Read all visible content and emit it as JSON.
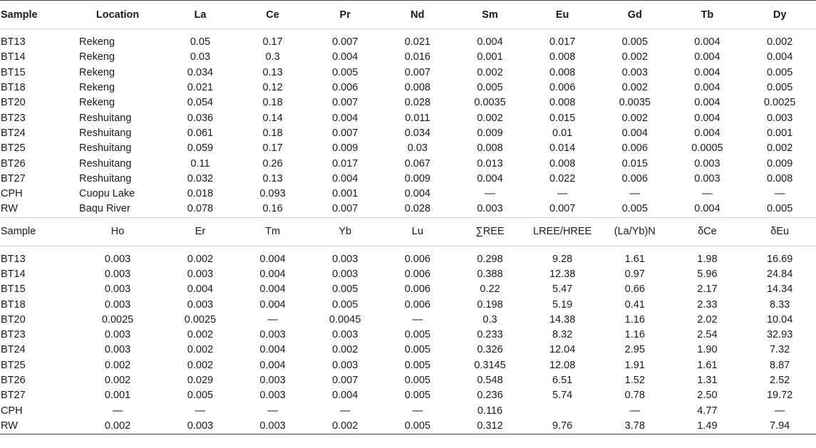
{
  "table1": {
    "headers": [
      "Sample",
      "Location",
      "La",
      "Ce",
      "Pr",
      "Nd",
      "Sm",
      "Eu",
      "Gd",
      "Tb",
      "Dy"
    ],
    "rows": [
      [
        "BT13",
        "Rekeng",
        "0.05",
        "0.17",
        "0.007",
        "0.021",
        "0.004",
        "0.017",
        "0.005",
        "0.004",
        "0.002"
      ],
      [
        "BT14",
        "Rekeng",
        "0.03",
        "0.3",
        "0.004",
        "0.016",
        "0.001",
        "0.008",
        "0.002",
        "0.004",
        "0.004"
      ],
      [
        "BT15",
        "Rekeng",
        "0.034",
        "0.13",
        "0.005",
        "0.007",
        "0.002",
        "0.008",
        "0.003",
        "0.004",
        "0.005"
      ],
      [
        "BT18",
        "Rekeng",
        "0.021",
        "0.12",
        "0.006",
        "0.008",
        "0.005",
        "0.006",
        "0.002",
        "0.004",
        "0.005"
      ],
      [
        "BT20",
        "Rekeng",
        "0.054",
        "0.18",
        "0.007",
        "0.028",
        "0.0035",
        "0.008",
        "0.0035",
        "0.004",
        "0.0025"
      ],
      [
        "BT23",
        "Reshuitang",
        "0.036",
        "0.14",
        "0.004",
        "0.011",
        "0.002",
        "0.015",
        "0.002",
        "0.004",
        "0.003"
      ],
      [
        "BT24",
        "Reshuitang",
        "0.061",
        "0.18",
        "0.007",
        "0.034",
        "0.009",
        "0.01",
        "0.004",
        "0.004",
        "0.001"
      ],
      [
        "BT25",
        "Reshuitang",
        "0.059",
        "0.17",
        "0.009",
        "0.03",
        "0.008",
        "0.014",
        "0.006",
        "0.0005",
        "0.002"
      ],
      [
        "BT26",
        "Reshuitang",
        "0.11",
        "0.26",
        "0.017",
        "0.067",
        "0.013",
        "0.008",
        "0.015",
        "0.003",
        "0.009"
      ],
      [
        "BT27",
        "Reshuitang",
        "0.032",
        "0.13",
        "0.004",
        "0.009",
        "0.004",
        "0.022",
        "0.006",
        "0.003",
        "0.008"
      ],
      [
        "CPH",
        "Cuopu Lake",
        "0.018",
        "0.093",
        "0.001",
        "0.004",
        "—",
        "—",
        "—",
        "—",
        "—"
      ],
      [
        "RW",
        "Baqu River",
        "0.078",
        "0.16",
        "0.007",
        "0.028",
        "0.003",
        "0.007",
        "0.005",
        "0.004",
        "0.005"
      ]
    ]
  },
  "table2": {
    "headers": [
      "Sample",
      "Ho",
      "Er",
      "Tm",
      "Yb",
      "Lu",
      "∑REE",
      "LREE/HREE",
      "(La/Yb)N",
      "δCe",
      "δEu"
    ],
    "rows": [
      [
        "BT13",
        "0.003",
        "0.002",
        "0.004",
        "0.003",
        "0.006",
        "0.298",
        "9.28",
        "1.61",
        "1.98",
        "16.69"
      ],
      [
        "BT14",
        "0.003",
        "0.003",
        "0.004",
        "0.003",
        "0.006",
        "0.388",
        "12.38",
        "0.97",
        "5.96",
        "24.84"
      ],
      [
        "BT15",
        "0.003",
        "0.004",
        "0.004",
        "0.005",
        "0.006",
        "0.22",
        "5.47",
        "0.66",
        "2.17",
        "14.34"
      ],
      [
        "BT18",
        "0.003",
        "0.003",
        "0.004",
        "0.005",
        "0.006",
        "0.198",
        "5.19",
        "0.41",
        "2.33",
        "8.33"
      ],
      [
        "BT20",
        "0.0025",
        "0.0025",
        "—",
        "0.0045",
        "—",
        "0.3",
        "14.38",
        "1.16",
        "2.02",
        "10.04"
      ],
      [
        "BT23",
        "0.003",
        "0.002",
        "0.003",
        "0.003",
        "0.005",
        "0.233",
        "8.32",
        "1.16",
        "2.54",
        "32.93"
      ],
      [
        "BT24",
        "0.003",
        "0.002",
        "0.004",
        "0.002",
        "0.005",
        "0.326",
        "12.04",
        "2.95",
        "1.90",
        "7.32"
      ],
      [
        "BT25",
        "0.002",
        "0.002",
        "0.004",
        "0.003",
        "0.005",
        "0.3145",
        "12.08",
        "1.91",
        "1.61",
        "8.87"
      ],
      [
        "BT26",
        "0.002",
        "0.029",
        "0.003",
        "0.007",
        "0.005",
        "0.548",
        "6.51",
        "1.52",
        "1.31",
        "2.52"
      ],
      [
        "BT27",
        "0.001",
        "0.005",
        "0.003",
        "0.004",
        "0.005",
        "0.236",
        "5.74",
        "0.78",
        "2.50",
        "19.72"
      ],
      [
        "CPH",
        "—",
        "—",
        "—",
        "—",
        "—",
        "0.116",
        "",
        "—",
        "4.77",
        "—"
      ],
      [
        "RW",
        "0.002",
        "0.003",
        "0.003",
        "0.002",
        "0.005",
        "0.312",
        "9.76",
        "3.78",
        "1.49",
        "7.94"
      ]
    ]
  }
}
